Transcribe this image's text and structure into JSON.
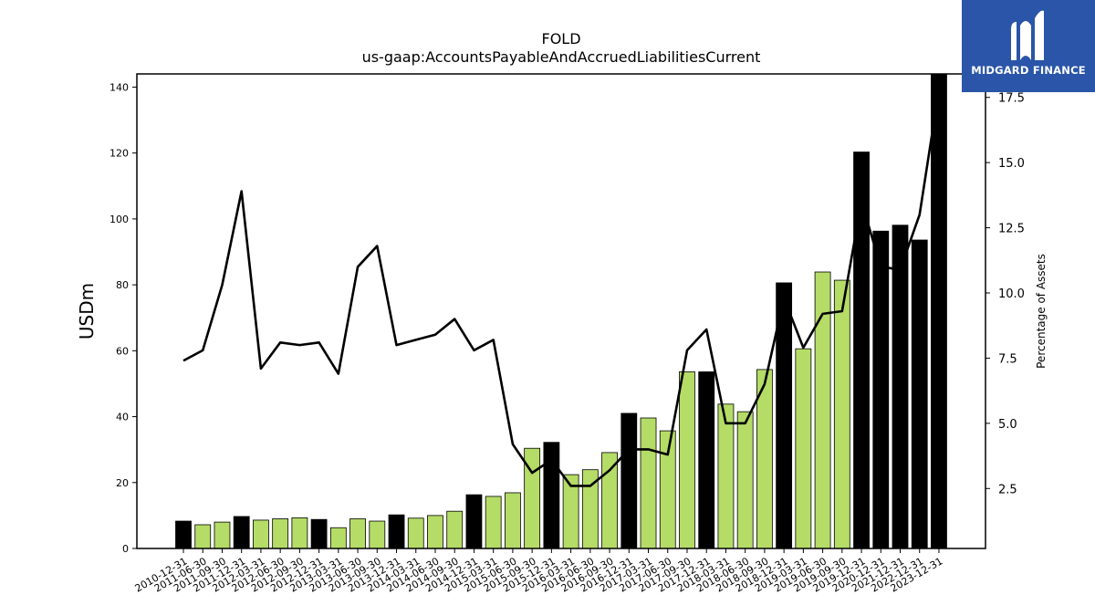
{
  "chart_data": {
    "type": "bar",
    "title": "FOLD",
    "subtitle": "us-gaap:AccountsPayableAndAccruedLiabilitiesCurrent",
    "ylabel": "USDm",
    "y2label": "Percentage of Assets",
    "ylim": [
      0,
      144
    ],
    "y2lim": [
      0.2,
      18.4
    ],
    "yticks": [
      0,
      20,
      40,
      60,
      80,
      100,
      120,
      140
    ],
    "y2ticks": [
      "2.5",
      "5.0",
      "7.5",
      "10.0",
      "12.5",
      "15.0",
      "17.5"
    ],
    "categories": [
      "2010-12-31",
      "2011-06-30",
      "2011-09-30",
      "2011-12-31",
      "2012-03-31",
      "2012-06-30",
      "2012-09-30",
      "2012-12-31",
      "2013-03-31",
      "2013-06-30",
      "2013-09-30",
      "2013-12-31",
      "2014-03-31",
      "2014-06-30",
      "2014-09-30",
      "2014-12-31",
      "2015-03-31",
      "2015-06-30",
      "2015-09-30",
      "2015-12-31",
      "2016-03-31",
      "2016-06-30",
      "2016-09-30",
      "2016-12-31",
      "2017-03-31",
      "2017-06-30",
      "2017-09-30",
      "2017-12-31",
      "2018-03-31",
      "2018-06-30",
      "2018-09-30",
      "2018-12-31",
      "2019-03-31",
      "2019-06-30",
      "2019-09-30",
      "2019-12-31",
      "2020-12-31",
      "2021-12-31",
      "2022-12-31",
      "2023-12-31"
    ],
    "series": [
      {
        "kind": "bar",
        "values": [
          8.3,
          7.2,
          8.0,
          9.7,
          8.6,
          9.0,
          9.3,
          8.8,
          6.3,
          9.0,
          8.3,
          10.2,
          9.2,
          10.0,
          11.3,
          16.3,
          15.8,
          16.9,
          30.4,
          32.2,
          22.4,
          23.9,
          29.1,
          41.0,
          39.6,
          35.7,
          53.6,
          53.6,
          43.8,
          41.5,
          54.3,
          80.6,
          60.6,
          83.9,
          81.4,
          120.3,
          96.3,
          98.1,
          93.6,
          144.0
        ],
        "colors": [
          "#000000",
          "#b5dc67",
          "#b5dc67",
          "#000000",
          "#b5dc67",
          "#b5dc67",
          "#b5dc67",
          "#000000",
          "#b5dc67",
          "#b5dc67",
          "#b5dc67",
          "#000000",
          "#b5dc67",
          "#b5dc67",
          "#b5dc67",
          "#000000",
          "#b5dc67",
          "#b5dc67",
          "#b5dc67",
          "#000000",
          "#b5dc67",
          "#b5dc67",
          "#b5dc67",
          "#000000",
          "#b5dc67",
          "#b5dc67",
          "#b5dc67",
          "#000000",
          "#b5dc67",
          "#b5dc67",
          "#b5dc67",
          "#000000",
          "#b5dc67",
          "#b5dc67",
          "#b5dc67",
          "#000000",
          "#000000",
          "#000000",
          "#000000",
          "#000000"
        ]
      },
      {
        "kind": "line",
        "axis": "right",
        "values": [
          7.4,
          7.8,
          10.3,
          13.9,
          7.1,
          8.1,
          8.0,
          8.1,
          6.9,
          11.0,
          11.8,
          8.0,
          8.2,
          8.4,
          9.0,
          7.8,
          8.2,
          4.2,
          3.1,
          3.6,
          2.6,
          2.6,
          3.2,
          4.0,
          4.0,
          3.8,
          7.8,
          8.6,
          5.0,
          5.0,
          6.5,
          9.8,
          7.9,
          9.2,
          9.3,
          13.5,
          11.0,
          10.9,
          13.0,
          17.8
        ],
        "color": "#000000"
      }
    ]
  },
  "logo": {
    "text": "MIDGARD FINANCE",
    "bg_color": "#2a55a8"
  },
  "colors": {
    "bar_primary": "#b5dc67",
    "bar_highlight": "#000000",
    "line": "#000000"
  }
}
